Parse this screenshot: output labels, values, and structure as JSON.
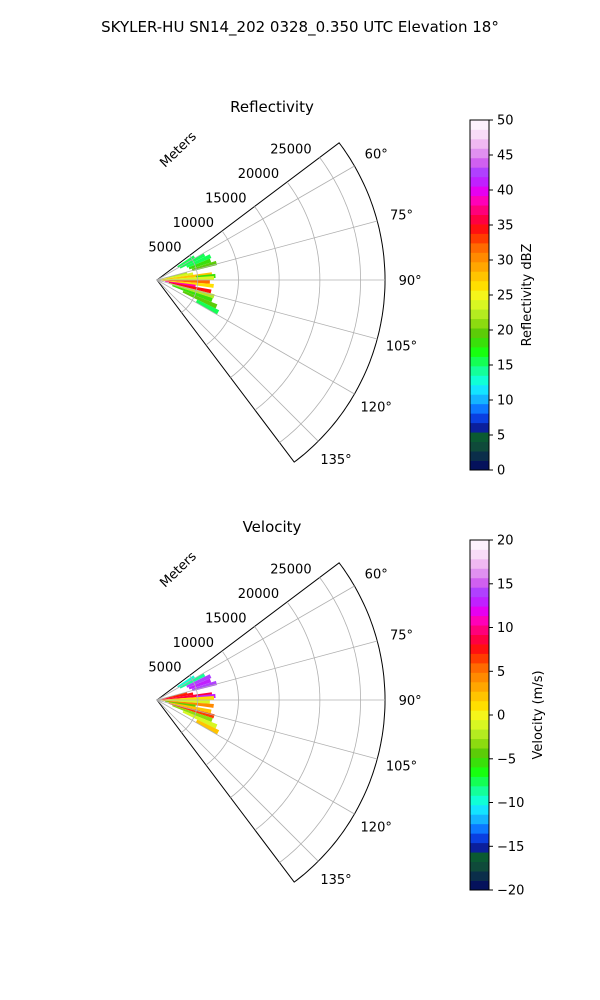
{
  "figure": {
    "title": "SKYLER-HU  SN14_202  0328_0.350 UTC Elevation 18°"
  },
  "chart_data": [
    {
      "type": "heatmap",
      "title": "Reflectivity",
      "radial_label": "Meters",
      "radial_ticks": [
        5000,
        10000,
        15000,
        20000,
        25000
      ],
      "radial_tick_labels": [
        "5000",
        "10000",
        "15000",
        "20000",
        "25000"
      ],
      "r_max": 28000,
      "azimuth_range_deg": [
        53,
        143
      ],
      "azimuth_ticks": [
        60,
        75,
        90,
        105,
        120,
        135
      ],
      "azimuth_tick_labels": [
        "60°",
        "75°",
        "90°",
        "105°",
        "120°",
        "135°"
      ],
      "grid": true,
      "colorbar": {
        "label": "Reflectivity dBZ",
        "range": [
          0,
          50
        ],
        "ticks": [
          0,
          5,
          10,
          15,
          20,
          25,
          30,
          35,
          40,
          45,
          50
        ],
        "tick_labels": [
          "0",
          "5",
          "10",
          "15",
          "20",
          "25",
          "30",
          "35",
          "40",
          "45",
          "50"
        ],
        "colors": [
          "#05125c",
          "#0b2e4a",
          "#0f4a3a",
          "#0a5a32",
          "#0b1f9c",
          "#0a3fe0",
          "#0c78ff",
          "#14b4ff",
          "#14e4ff",
          "#10ffd6",
          "#14ff9a",
          "#14ff54",
          "#18ff10",
          "#39e00a",
          "#5ccc08",
          "#8cdb10",
          "#b4eb20",
          "#d8f722",
          "#f5f51a",
          "#ffdf00",
          "#ffc400",
          "#ffa600",
          "#ff8a00",
          "#ff6a00",
          "#ff3c00",
          "#ff1010",
          "#ff0040",
          "#ff007a",
          "#ff00b8",
          "#e600f0",
          "#c020ff",
          "#b040ff",
          "#d060f0",
          "#e090f0",
          "#f0b8f2",
          "#f8dcf8",
          "#fdf2fd"
        ]
      },
      "series": [
        {
          "values": [
            {
              "az": 58,
              "r_min": 3000,
              "r_max": 5400,
              "dbz": 16
            },
            {
              "az": 62,
              "r_min": 3200,
              "r_max": 6600,
              "dbz": 15
            },
            {
              "az": 66,
              "r_min": 4000,
              "r_max": 7200,
              "dbz": 16
            },
            {
              "az": 70,
              "r_min": 4200,
              "r_max": 7000,
              "dbz": 18
            },
            {
              "az": 74,
              "r_min": 4500,
              "r_max": 7600,
              "dbz": 20
            },
            {
              "az": 77,
              "r_min": 1000,
              "r_max": 3800,
              "dbz": 22
            },
            {
              "az": 80,
              "r_min": 500,
              "r_max": 4500,
              "dbz": 24
            },
            {
              "az": 84,
              "r_min": 500,
              "r_max": 6800,
              "dbz": 28
            },
            {
              "az": 86,
              "r_min": 4800,
              "r_max": 7200,
              "dbz": 18
            },
            {
              "az": 88,
              "r_min": 300,
              "r_max": 7000,
              "dbz": 24
            },
            {
              "az": 92,
              "r_min": 300,
              "r_max": 6500,
              "dbz": 32
            },
            {
              "az": 96,
              "r_min": 300,
              "r_max": 7000,
              "dbz": 26
            },
            {
              "az": 99,
              "r_min": 1000,
              "r_max": 4800,
              "dbz": 38
            },
            {
              "az": 102,
              "r_min": 1500,
              "r_max": 6800,
              "dbz": 34
            },
            {
              "az": 106,
              "r_min": 1500,
              "r_max": 7300,
              "dbz": 22
            },
            {
              "az": 110,
              "r_min": 2000,
              "r_max": 7200,
              "dbz": 18
            },
            {
              "az": 114,
              "r_min": 3500,
              "r_max": 8000,
              "dbz": 20
            },
            {
              "az": 118,
              "r_min": 5500,
              "r_max": 8500,
              "dbz": 16
            }
          ]
        }
      ]
    },
    {
      "type": "heatmap",
      "title": "Velocity",
      "radial_label": "Meters",
      "radial_ticks": [
        5000,
        10000,
        15000,
        20000,
        25000
      ],
      "radial_tick_labels": [
        "5000",
        "10000",
        "15000",
        "20000",
        "25000"
      ],
      "r_max": 28000,
      "azimuth_range_deg": [
        53,
        143
      ],
      "azimuth_ticks": [
        60,
        75,
        90,
        105,
        120,
        135
      ],
      "azimuth_tick_labels": [
        "60°",
        "75°",
        "90°",
        "105°",
        "120°",
        "135°"
      ],
      "grid": true,
      "colorbar": {
        "label": "Velocity (m/s)",
        "range": [
          -20,
          20
        ],
        "ticks": [
          -20,
          -15,
          -10,
          -5,
          0,
          5,
          10,
          15,
          20
        ],
        "tick_labels": [
          "−20",
          "−15",
          "−10",
          "−5",
          "0",
          "5",
          "10",
          "15",
          "20"
        ],
        "colors": [
          "#05125c",
          "#0b2e4a",
          "#0f4a3a",
          "#0a5a32",
          "#0b1f9c",
          "#0a3fe0",
          "#0c78ff",
          "#14b4ff",
          "#14e4ff",
          "#10ffd6",
          "#14ff9a",
          "#14ff54",
          "#18ff10",
          "#39e00a",
          "#5ccc08",
          "#8cdb10",
          "#b4eb20",
          "#d8f722",
          "#f5f51a",
          "#ffdf00",
          "#ffc400",
          "#ffa600",
          "#ff8a00",
          "#ff6a00",
          "#ff3c00",
          "#ff1010",
          "#ff0040",
          "#ff007a",
          "#ff00b8",
          "#e600f0",
          "#c020ff",
          "#b040ff",
          "#d060f0",
          "#e090f0",
          "#f0b8f2",
          "#f8dcf8",
          "#fdf2fd"
        ]
      },
      "series": [
        {
          "values": [
            {
              "az": 58,
              "r_min": 3000,
              "r_max": 5400,
              "vel": -10
            },
            {
              "az": 62,
              "r_min": 3200,
              "r_max": 6600,
              "vel": -9
            },
            {
              "az": 66,
              "r_min": 4000,
              "r_max": 7200,
              "vel": 14
            },
            {
              "az": 70,
              "r_min": 4200,
              "r_max": 7000,
              "vel": 13
            },
            {
              "az": 74,
              "r_min": 4500,
              "r_max": 7600,
              "vel": 14
            },
            {
              "az": 77,
              "r_min": 1000,
              "r_max": 3800,
              "vel": 6
            },
            {
              "az": 80,
              "r_min": 500,
              "r_max": 4500,
              "vel": 8
            },
            {
              "az": 84,
              "r_min": 500,
              "r_max": 6800,
              "vel": 9
            },
            {
              "az": 86,
              "r_min": 4800,
              "r_max": 7200,
              "vel": 13
            },
            {
              "az": 88,
              "r_min": 300,
              "r_max": 7000,
              "vel": 1
            },
            {
              "az": 92,
              "r_min": 300,
              "r_max": 6500,
              "vel": -1
            },
            {
              "az": 96,
              "r_min": 300,
              "r_max": 7000,
              "vel": 4
            },
            {
              "az": 99,
              "r_min": 1000,
              "r_max": 4800,
              "vel": -4
            },
            {
              "az": 102,
              "r_min": 1500,
              "r_max": 6800,
              "vel": 2
            },
            {
              "az": 106,
              "r_min": 1500,
              "r_max": 7300,
              "vel": 7
            },
            {
              "az": 110,
              "r_min": 2000,
              "r_max": 7200,
              "vel": -3
            },
            {
              "az": 114,
              "r_min": 3500,
              "r_max": 8000,
              "vel": -1
            },
            {
              "az": 118,
              "r_min": 5500,
              "r_max": 8500,
              "vel": 2
            }
          ]
        }
      ]
    }
  ]
}
